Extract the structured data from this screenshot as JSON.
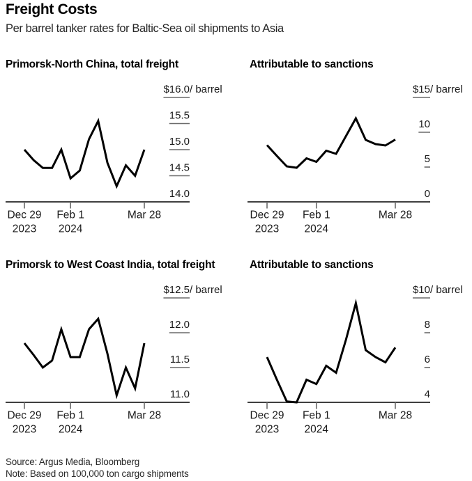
{
  "header": {
    "title": "Freight Costs",
    "subtitle": "Per barrel tanker rates for Baltic-Sea oil shipments to Asia"
  },
  "footer": {
    "source": "Source: Argus Media, Bloomberg",
    "note": "Note: Based on 100,000 ton cargo shipments"
  },
  "colors": {
    "line": "#000000",
    "axis": "#3f3f3f",
    "tick": "#6a6a6a",
    "text": "#1a1a1a"
  },
  "x_axis": {
    "tick_labels": [
      [
        "Dec 29",
        "2023"
      ],
      [
        "Feb 1",
        "2024"
      ],
      [
        "Mar 28"
      ]
    ],
    "tick_indices": [
      0,
      5,
      13
    ]
  },
  "chart_data": [
    {
      "type": "line",
      "title": "Primorsk-North China, total freight",
      "unit_suffix": "/ barrel",
      "ylim": [
        14.0,
        16.0
      ],
      "ytick_values": [
        16.0,
        15.5,
        15.0,
        14.5,
        14.0
      ],
      "ytick_labels": [
        "$16.0",
        "15.5",
        "15.0",
        "14.5",
        "14.0"
      ],
      "xlabel": "",
      "ylabel": "$ per barrel",
      "values": [
        15.0,
        14.8,
        14.65,
        14.65,
        15.0,
        14.45,
        14.6,
        15.2,
        15.55,
        14.75,
        14.3,
        14.7,
        14.5,
        15.0
      ]
    },
    {
      "type": "line",
      "title": "Attributable to sanctions",
      "unit_suffix": "/ barrel",
      "ylim": [
        0,
        15
      ],
      "ytick_values": [
        15,
        10,
        5,
        0
      ],
      "ytick_labels": [
        "$15",
        "10",
        "5",
        "0"
      ],
      "xlabel": "",
      "ylabel": "$ per barrel",
      "values": [
        8.15,
        6.6,
        5.1,
        4.9,
        6.25,
        5.75,
        7.35,
        6.9,
        9.45,
        12.0,
        8.9,
        8.3,
        8.1,
        8.95
      ]
    },
    {
      "type": "line",
      "title": "Primorsk to West Coast India, total freight",
      "unit_suffix": "/ barrel",
      "ylim": [
        11.0,
        12.5
      ],
      "ytick_values": [
        12.5,
        12.0,
        11.5,
        11.0
      ],
      "ytick_labels": [
        "$12.5",
        "12.0",
        "11.5",
        "11.0"
      ],
      "xlabel": "",
      "ylabel": "$ per barrel",
      "values": [
        11.85,
        11.68,
        11.5,
        11.6,
        12.05,
        11.65,
        11.65,
        12.05,
        12.2,
        11.7,
        11.1,
        11.5,
        11.2,
        11.85
      ]
    },
    {
      "type": "line",
      "title": "Attributable to sanctions",
      "unit_suffix": "/ barrel",
      "ylim": [
        4,
        10
      ],
      "ytick_values": [
        10,
        8,
        6,
        4
      ],
      "ytick_labels": [
        "$10",
        "8",
        "6",
        "4"
      ],
      "xlabel": "",
      "ylabel": "$ per barrel",
      "values": [
        6.6,
        5.3,
        4.05,
        4.0,
        5.3,
        5.05,
        6.1,
        5.7,
        7.6,
        9.7,
        7.0,
        6.6,
        6.3,
        7.15
      ]
    }
  ]
}
